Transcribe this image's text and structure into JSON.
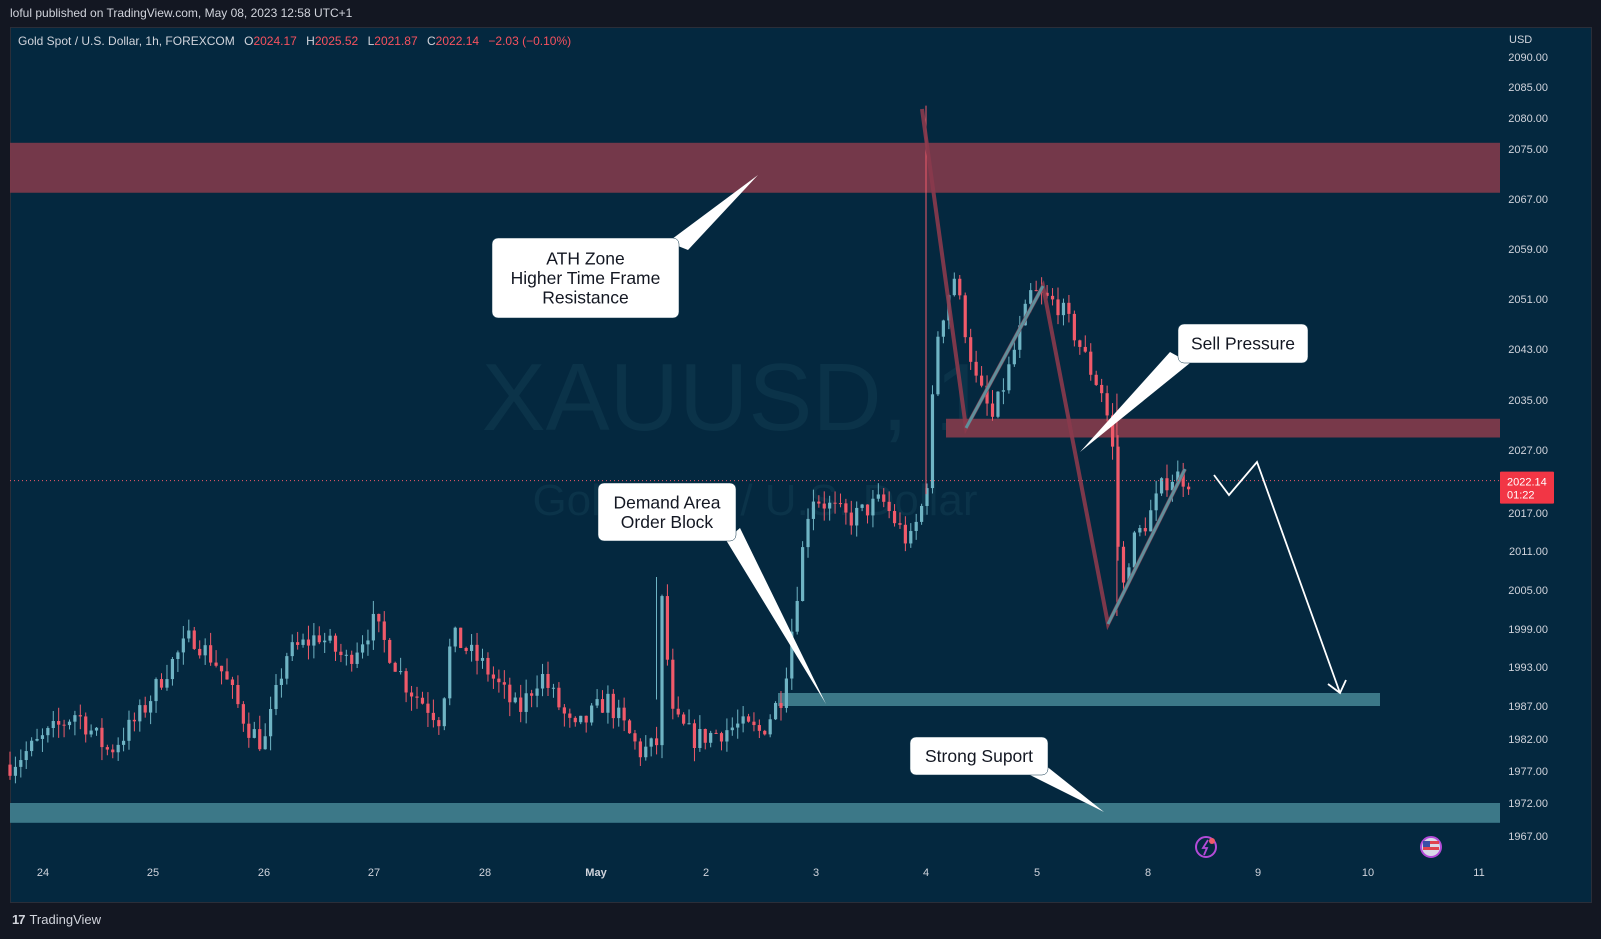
{
  "header": {
    "published": "loful published on TradingView.com, May 08, 2023 12:58 UTC+1"
  },
  "symbol": {
    "name": "Gold Spot / U.S. Dollar, 1h, FOREXCOM",
    "open_label": "O",
    "open": "2024.17",
    "high_label": "H",
    "high": "2025.52",
    "low_label": "L",
    "low": "2021.87",
    "close_label": "C",
    "close": "2022.14",
    "change": "−2.03 (−0.10%)"
  },
  "watermark": {
    "ticker": "XAUUSD, 1",
    "description": "Gold Spot / U.S. Dollar"
  },
  "price_axis": {
    "currency": "USD",
    "ticks": [
      "2090.00",
      "2085.00",
      "2080.00",
      "2075.00",
      "2067.00",
      "2059.00",
      "2051.00",
      "2043.00",
      "2035.00",
      "2027.00",
      "2017.00",
      "2011.00",
      "2005.00",
      "1999.00",
      "1993.00",
      "1987.00",
      "1982.00",
      "1977.00",
      "1972.00",
      "1967.00"
    ],
    "current_price": "2022.14",
    "countdown": "01:22"
  },
  "chart_data": {
    "type": "candlestick",
    "title": "Gold Spot / U.S. Dollar, 1h, FOREXCOM",
    "xlabel": "",
    "ylabel": "USD",
    "x_ticks": [
      "24",
      "25",
      "26",
      "27",
      "28",
      "May",
      "2",
      "3",
      "4",
      "5",
      "8",
      "9",
      "10",
      "11"
    ],
    "ylim": [
      1964,
      2092
    ],
    "last": {
      "open": 2024.17,
      "high": 2025.52,
      "low": 2021.87,
      "close": 2022.14
    },
    "zones": [
      {
        "name": "ATH Zone",
        "from": 2068,
        "to": 2076
      },
      {
        "name": "Sell Pressure level",
        "from": 2029,
        "to": 2032
      },
      {
        "name": "Demand Area Order Block",
        "from": 1987,
        "to": 1989
      },
      {
        "name": "Strong Suport",
        "from": 1969,
        "to": 1972
      }
    ],
    "key_prices": {
      "ath_high": 2082,
      "sell_pressure_low": 2000,
      "range_low": 1975
    },
    "projection": [
      2023,
      2018,
      2026,
      1988
    ],
    "grid": false,
    "legend": "none"
  },
  "annotations": {
    "ath": "ATH Zone\nHigher Time Frame\nResistance",
    "sell": "Sell Pressure",
    "demand": "Demand Area\nOrder Block",
    "support": "Strong Suport"
  },
  "colors": {
    "background": "#04283f",
    "up": "#6fb4c4",
    "down": "#f05a6a",
    "resistance_zone": "#7e3a4b",
    "support_zone": "#3f7c8c"
  },
  "footer": {
    "brand": "TradingView"
  }
}
